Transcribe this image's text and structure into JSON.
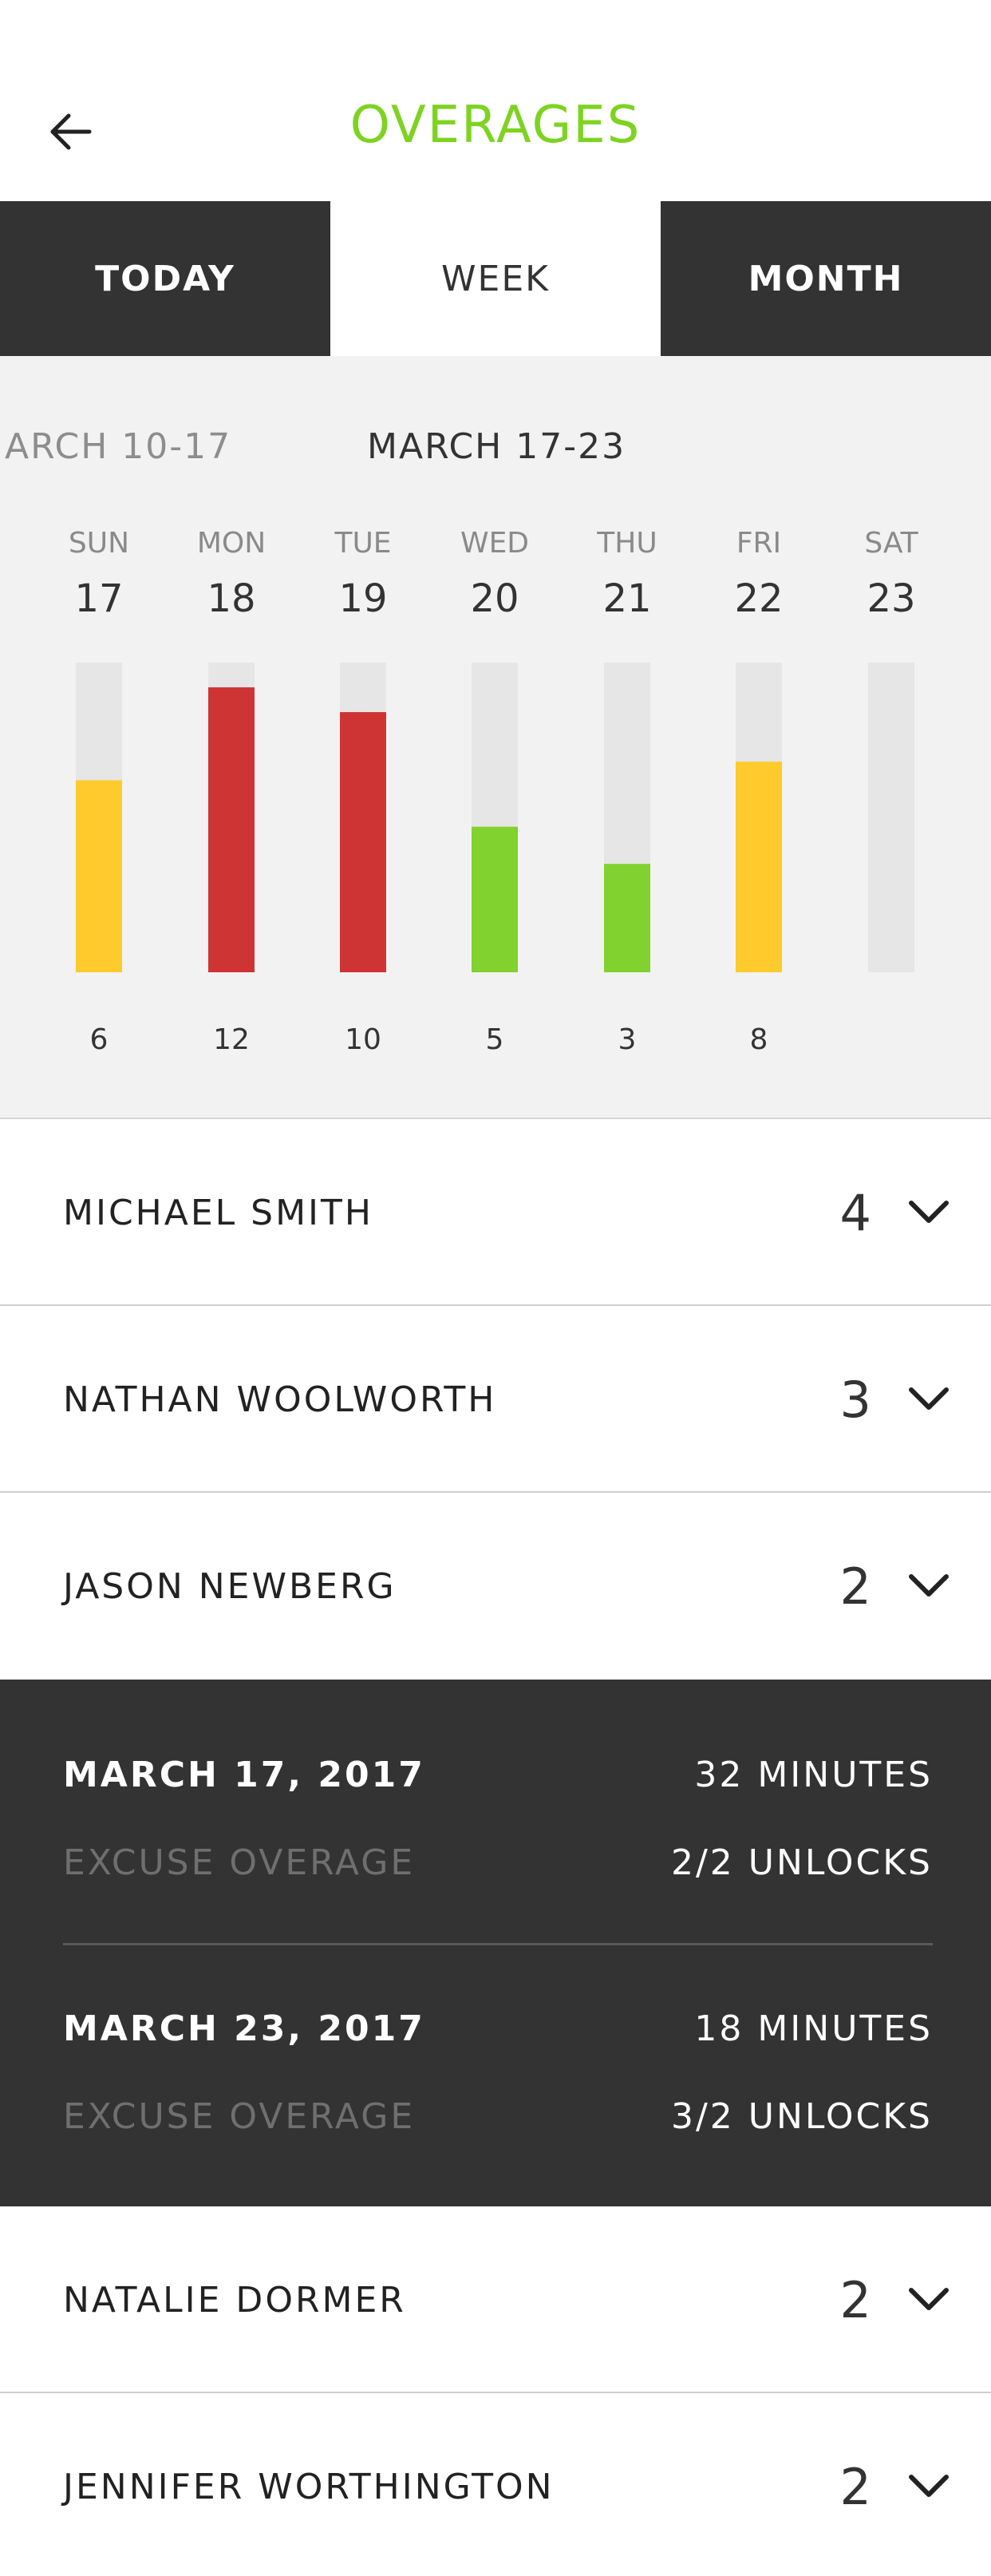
{
  "header": {
    "title": "OVERAGES",
    "title_color": "#7ed321",
    "back_icon": "arrow-left-icon"
  },
  "tabs": [
    {
      "label": "TODAY",
      "active": false
    },
    {
      "label": "WEEK",
      "active": true
    },
    {
      "label": "MONTH",
      "active": false
    }
  ],
  "week_nav": {
    "previous_range": "ARCH 10-17",
    "current_range": "MARCH 17-23"
  },
  "chart_data": {
    "type": "bar",
    "categories": [
      "SUN",
      "MON",
      "TUE",
      "WED",
      "THU",
      "FRI",
      "SAT"
    ],
    "dates": [
      "17",
      "18",
      "19",
      "20",
      "21",
      "22",
      "23"
    ],
    "values": [
      6,
      12,
      10,
      5,
      3,
      8,
      null
    ],
    "value_labels": [
      "6",
      "12",
      "10",
      "5",
      "3",
      "8",
      ""
    ],
    "fill_fractions": [
      0.62,
      0.92,
      0.84,
      0.47,
      0.35,
      0.68,
      0
    ],
    "bar_colors": [
      "#ffca2c",
      "#cf3434",
      "#cf3434",
      "#81d22e",
      "#81d22e",
      "#ffca2c",
      "#e6e6e6"
    ],
    "track_color": "#e6e6e6",
    "grid": false,
    "legend": "none"
  },
  "people": [
    {
      "name": "MICHAEL SMITH",
      "count": "4",
      "expanded": false
    },
    {
      "name": "NATHAN WOOLWORTH",
      "count": "3",
      "expanded": false
    },
    {
      "name": "JASON NEWBERG",
      "count": "2",
      "expanded": true
    },
    {
      "name": "NATALIE DORMER",
      "count": "2",
      "expanded": false
    },
    {
      "name": "JENNIFER WORTHINGTON",
      "count": "2",
      "expanded": false
    }
  ],
  "expanded_detail": {
    "entries": [
      {
        "date": "MARCH 17, 2017",
        "minutes": "32 MINUTES",
        "excuse": "EXCUSE OVERAGE",
        "unlocks": "2/2 UNLOCKS"
      },
      {
        "date": "MARCH 23, 2017",
        "minutes": "18 MINUTES",
        "excuse": "EXCUSE OVERAGE",
        "unlocks": "3/2 UNLOCKS"
      }
    ]
  }
}
